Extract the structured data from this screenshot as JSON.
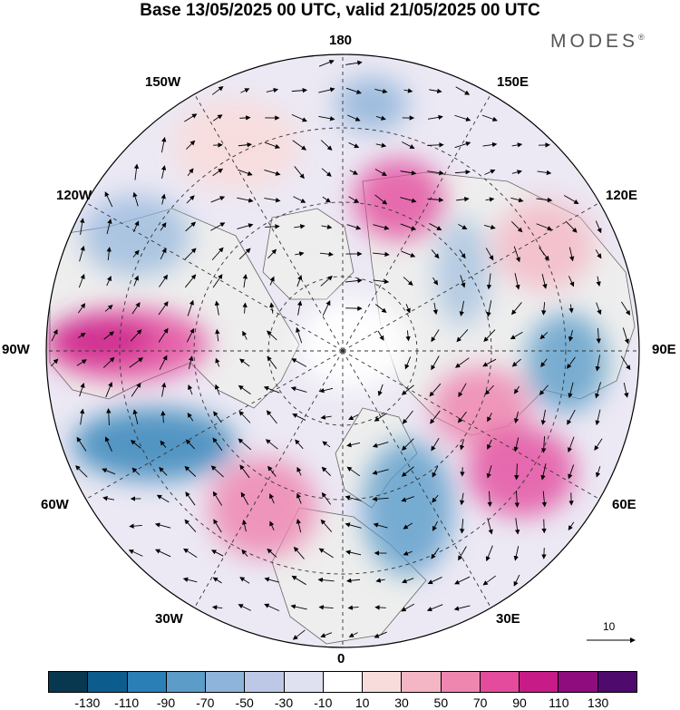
{
  "title": "Base 13/05/2025 00 UTC, valid 21/05/2025 00 UTC",
  "brand": "MODES",
  "brand_mark": "®",
  "meridian_labels": {
    "top": "180",
    "top_left": "150W",
    "top_right": "150E",
    "upper_left": "120W",
    "upper_right": "120E",
    "left": "90W",
    "right": "90E",
    "lower_left": "60W",
    "lower_right": "60E",
    "bottom_left": "30W",
    "bottom_right": "30E",
    "bottom": "0"
  },
  "vector_scale": {
    "value": "10"
  },
  "colorbar": {
    "colors": [
      "#08384f",
      "#0d5c8e",
      "#2a7fb7",
      "#5b9cc9",
      "#8fb4db",
      "#bcc8e6",
      "#e0e1f0",
      "#ffffff",
      "#f8dcdc",
      "#f4b6c4",
      "#ef86b0",
      "#e44b9d",
      "#c71b87",
      "#8e0c7d",
      "#4f0a6e"
    ],
    "tick_labels": [
      "-130",
      "-110",
      "-90",
      "-70",
      "-50",
      "-30",
      "-10",
      "10",
      "30",
      "50",
      "70",
      "90",
      "110",
      "130"
    ]
  },
  "colors": {
    "land": "#eeeeee",
    "coast": "#666666",
    "grid": "#333333"
  }
}
